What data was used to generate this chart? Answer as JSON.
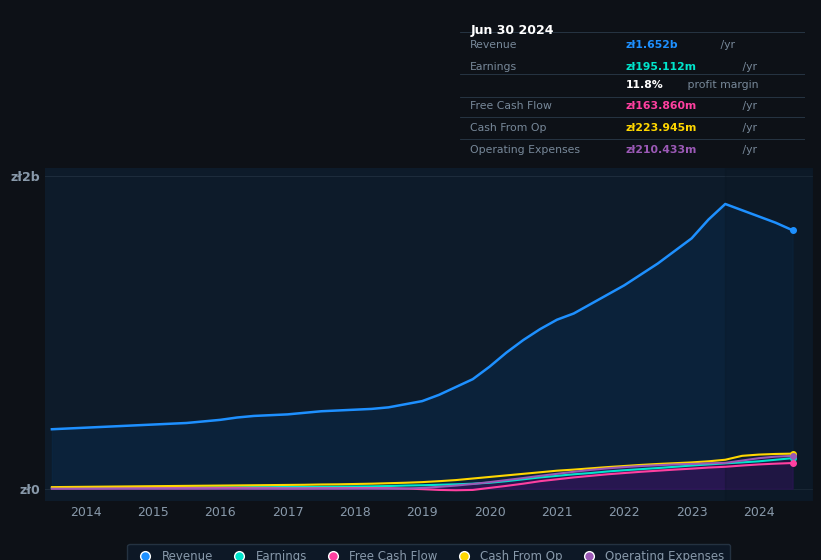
{
  "background_color": "#0d1117",
  "plot_bg_color": "#0d1b2a",
  "title_box": {
    "date": "Jun 30 2024",
    "rows": [
      {
        "label": "Revenue",
        "value": "zł1.652b",
        "unit": " /yr",
        "value_color": "#1e90ff"
      },
      {
        "label": "Earnings",
        "value": "zł195.112m",
        "unit": " /yr",
        "value_color": "#00e5cc"
      },
      {
        "label": "",
        "value": "11.8%",
        "unit": " profit margin",
        "value_color": "#ffffff"
      },
      {
        "label": "Free Cash Flow",
        "value": "zł163.860m",
        "unit": " /yr",
        "value_color": "#ff40a0"
      },
      {
        "label": "Cash From Op",
        "value": "zł223.945m",
        "unit": " /yr",
        "value_color": "#ffd700"
      },
      {
        "label": "Operating Expenses",
        "value": "zł210.433m",
        "unit": " /yr",
        "value_color": "#9b59b6"
      }
    ]
  },
  "ytick_vals": [
    0,
    2.0
  ],
  "ytick_labels": [
    "zł0",
    "zł2b"
  ],
  "years": [
    2013.5,
    2013.75,
    2014.0,
    2014.25,
    2014.5,
    2014.75,
    2015.0,
    2015.25,
    2015.5,
    2015.75,
    2016.0,
    2016.25,
    2016.5,
    2016.75,
    2017.0,
    2017.25,
    2017.5,
    2017.75,
    2018.0,
    2018.25,
    2018.5,
    2018.75,
    2019.0,
    2019.25,
    2019.5,
    2019.75,
    2020.0,
    2020.25,
    2020.5,
    2020.75,
    2021.0,
    2021.25,
    2021.5,
    2021.75,
    2022.0,
    2022.25,
    2022.5,
    2022.75,
    2023.0,
    2023.25,
    2023.5,
    2023.75,
    2024.0,
    2024.25,
    2024.5
  ],
  "revenue": [
    0.38,
    0.385,
    0.39,
    0.395,
    0.4,
    0.405,
    0.41,
    0.415,
    0.42,
    0.43,
    0.44,
    0.455,
    0.465,
    0.47,
    0.475,
    0.485,
    0.495,
    0.5,
    0.505,
    0.51,
    0.52,
    0.54,
    0.56,
    0.6,
    0.65,
    0.7,
    0.78,
    0.87,
    0.95,
    1.02,
    1.08,
    1.12,
    1.18,
    1.24,
    1.3,
    1.37,
    1.44,
    1.52,
    1.6,
    1.72,
    1.82,
    1.78,
    1.74,
    1.7,
    1.652
  ],
  "earnings": [
    0.005,
    0.005,
    0.006,
    0.006,
    0.006,
    0.007,
    0.007,
    0.007,
    0.008,
    0.008,
    0.009,
    0.009,
    0.01,
    0.01,
    0.011,
    0.011,
    0.012,
    0.013,
    0.014,
    0.015,
    0.017,
    0.02,
    0.022,
    0.025,
    0.028,
    0.032,
    0.038,
    0.048,
    0.06,
    0.072,
    0.082,
    0.092,
    0.1,
    0.11,
    0.118,
    0.125,
    0.132,
    0.14,
    0.148,
    0.155,
    0.162,
    0.168,
    0.175,
    0.185,
    0.195
  ],
  "free_cash": [
    0.002,
    0.002,
    0.002,
    0.002,
    0.003,
    0.003,
    0.003,
    0.003,
    0.003,
    0.003,
    0.004,
    0.004,
    0.003,
    0.003,
    0.002,
    0.002,
    0.003,
    0.003,
    0.004,
    0.004,
    0.003,
    0.001,
    -0.003,
    -0.008,
    -0.01,
    -0.008,
    0.005,
    0.018,
    0.032,
    0.048,
    0.06,
    0.072,
    0.082,
    0.092,
    0.1,
    0.108,
    0.115,
    0.122,
    0.128,
    0.135,
    0.14,
    0.148,
    0.155,
    0.16,
    0.164
  ],
  "cash_from_op": [
    0.01,
    0.011,
    0.012,
    0.013,
    0.014,
    0.015,
    0.016,
    0.017,
    0.018,
    0.019,
    0.02,
    0.021,
    0.022,
    0.023,
    0.024,
    0.025,
    0.027,
    0.028,
    0.03,
    0.032,
    0.035,
    0.038,
    0.042,
    0.048,
    0.055,
    0.065,
    0.075,
    0.085,
    0.095,
    0.105,
    0.115,
    0.122,
    0.13,
    0.138,
    0.145,
    0.152,
    0.158,
    0.163,
    0.168,
    0.175,
    0.185,
    0.21,
    0.218,
    0.222,
    0.224
  ],
  "op_expenses": [
    0.0,
    0.0,
    0.0,
    0.0,
    0.0,
    0.0,
    0.0,
    0.0,
    0.0,
    0.0,
    0.0,
    0.0,
    0.0,
    0.0,
    0.0,
    0.0,
    0.0,
    0.0,
    0.0,
    0.0,
    0.0,
    0.0,
    0.005,
    0.012,
    0.02,
    0.03,
    0.042,
    0.055,
    0.068,
    0.082,
    0.095,
    0.108,
    0.12,
    0.13,
    0.138,
    0.145,
    0.15,
    0.155,
    0.158,
    0.162,
    0.165,
    0.18,
    0.195,
    0.205,
    0.21
  ],
  "revenue_color": "#1e90ff",
  "earnings_color": "#00e5cc",
  "free_cash_color": "#ff40a0",
  "cash_from_op_color": "#ffd700",
  "op_expenses_color": "#9b59b6",
  "revenue_fill_color": "#0a2a4a",
  "op_expenses_fill_color": "#3a1060",
  "grid_color": "#1e2d3d",
  "text_color": "#8899aa",
  "legend_bg": "#0d1b2a",
  "legend_border": "#2a3a4a",
  "xticks": [
    2014,
    2015,
    2016,
    2017,
    2018,
    2019,
    2020,
    2021,
    2022,
    2023,
    2024
  ],
  "xlim": [
    2013.4,
    2024.8
  ],
  "ylim": [
    -0.08,
    2.05
  ]
}
